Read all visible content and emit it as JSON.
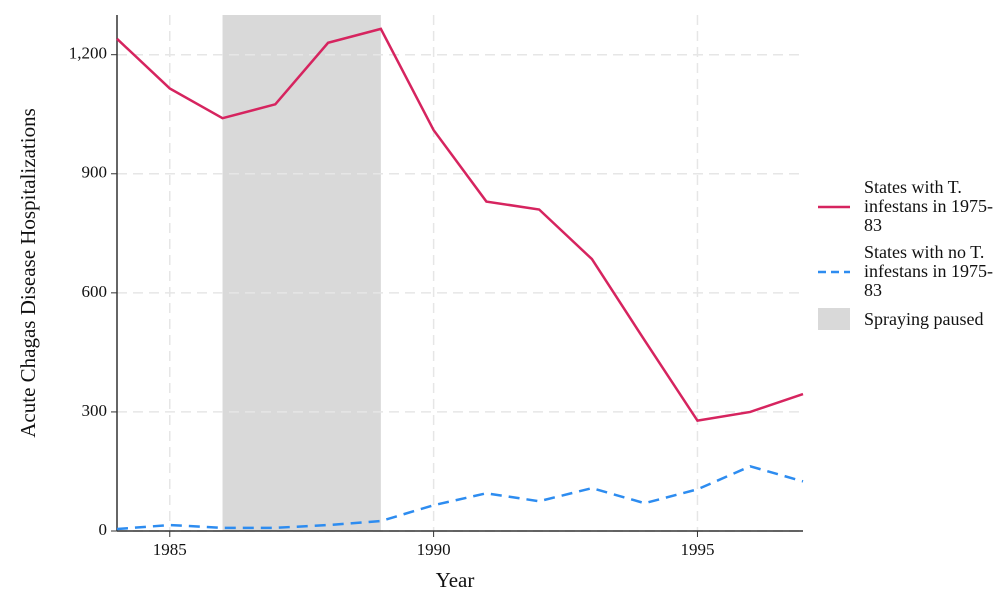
{
  "chart_data": {
    "type": "line",
    "x_label": "Year",
    "y_label": "Acute Chagas Disease Hospitalizations",
    "x": [
      1984,
      1985,
      1986,
      1987,
      1988,
      1989,
      1990,
      1991,
      1992,
      1993,
      1994,
      1995,
      1996,
      1997
    ],
    "series": [
      {
        "name": "States with T. infestans in 1975-83",
        "color": "#d6245f",
        "dash": false,
        "values": [
          1240,
          1115,
          1040,
          1075,
          1230,
          1265,
          1010,
          830,
          810,
          685,
          480,
          278,
          300,
          345
        ]
      },
      {
        "name": "States with no T. infestans in 1975-83",
        "color": "#2d8cf0",
        "dash": true,
        "values": [
          5,
          15,
          8,
          8,
          15,
          25,
          65,
          95,
          75,
          108,
          70,
          105,
          163,
          125
        ]
      }
    ],
    "shaded": {
      "x": [
        1986,
        1989
      ],
      "label": "Spraying paused",
      "color": "#d9d9d9"
    },
    "xlim": [
      1984,
      1997
    ],
    "xticks": [
      1985,
      1990,
      1995
    ],
    "ylim": [
      0,
      1300
    ],
    "yticks": [
      0,
      300,
      600,
      900,
      {
        "value": 1200,
        "label": "1,200"
      }
    ],
    "grid": true
  }
}
